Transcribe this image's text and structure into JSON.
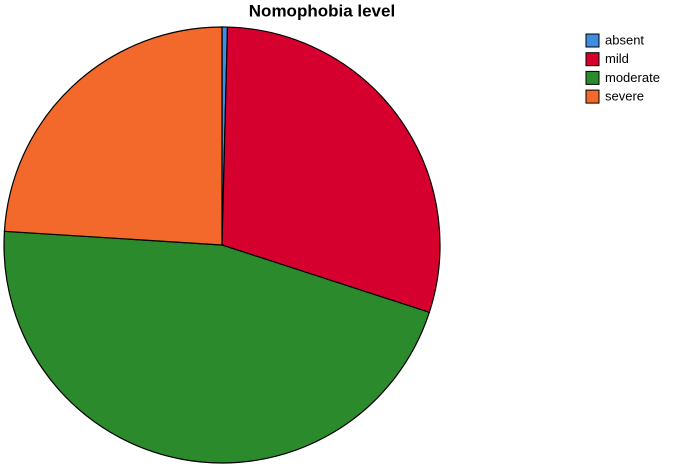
{
  "chart_data": {
    "type": "pie",
    "title": "Nomophobia level",
    "categories": [
      "absent",
      "mild",
      "moderate",
      "severe"
    ],
    "values": [
      0.4,
      29.6,
      46.0,
      24.0
    ],
    "colors": [
      "#3d8de0",
      "#d6002f",
      "#2b8a2c",
      "#f2692b"
    ]
  }
}
